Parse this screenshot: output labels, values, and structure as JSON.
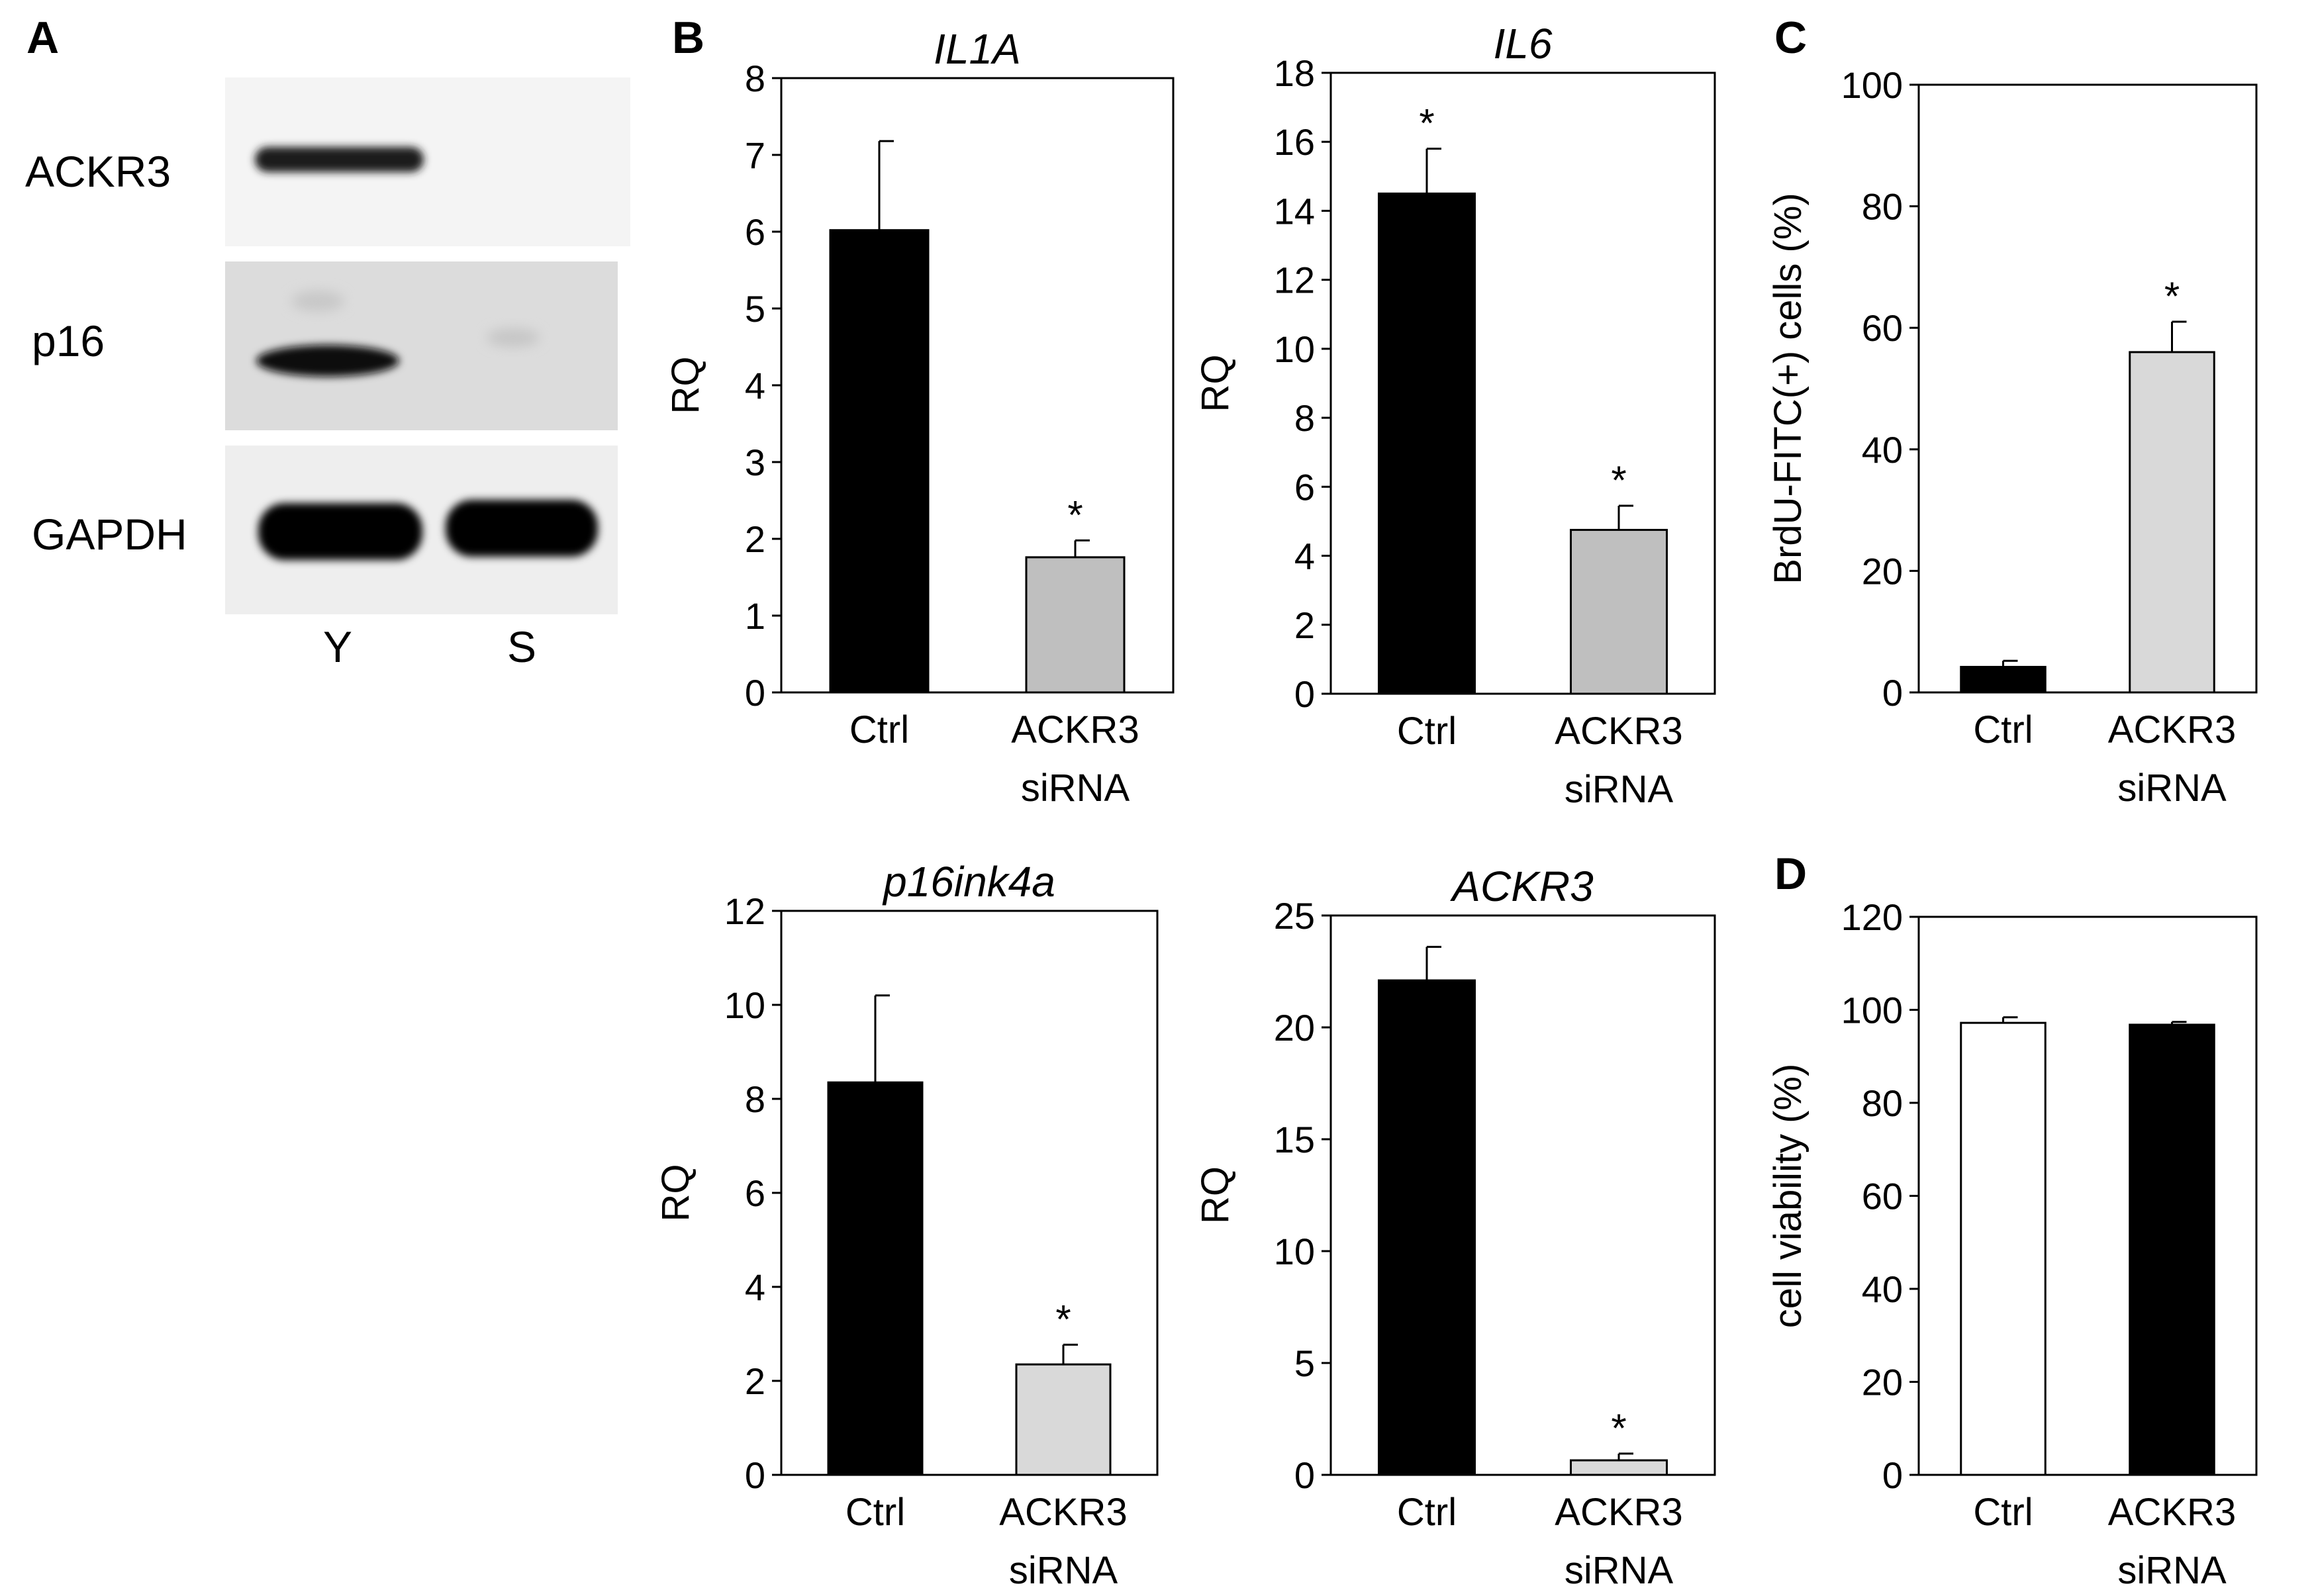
{
  "panels": {
    "A": "A",
    "B": "B",
    "C": "C",
    "D": "D"
  },
  "blot": {
    "rows": [
      "ACKR3",
      "p16",
      "GAPDH"
    ],
    "lanes": [
      "Y",
      "S"
    ],
    "band_intensity": [
      [
        0.85,
        0.02
      ],
      [
        0.9,
        0.05
      ],
      [
        1.0,
        1.0
      ]
    ]
  },
  "colors": {
    "black_bar": "#000000",
    "grey_bar_b": "#bfbfbf",
    "grey_bar_light": "#d9d9d9",
    "white_bar": "#ffffff"
  },
  "chart_data": [
    {
      "id": "il1a",
      "type": "bar",
      "title": "IL1A",
      "ylabel": "RQ",
      "ylim": [
        0,
        8
      ],
      "yticks": [
        0,
        1,
        2,
        3,
        4,
        5,
        6,
        7,
        8
      ],
      "categories": [
        [
          "Ctrl"
        ],
        [
          "ACKR3",
          "siRNA"
        ]
      ],
      "values": [
        6.02,
        1.76
      ],
      "errors": [
        1.16,
        0.22
      ],
      "significance": [
        "",
        "*"
      ],
      "bar_colors": [
        "#000000",
        "#bfbfbf"
      ]
    },
    {
      "id": "il6",
      "type": "bar",
      "title": "IL6",
      "ylabel": "RQ",
      "ylim": [
        0,
        18
      ],
      "yticks": [
        0,
        2,
        4,
        6,
        8,
        10,
        12,
        14,
        16,
        18
      ],
      "categories": [
        [
          "Ctrl"
        ],
        [
          "ACKR3",
          "siRNA"
        ]
      ],
      "values": [
        14.5,
        4.75
      ],
      "errors": [
        1.3,
        0.7
      ],
      "significance": [
        "*",
        "*"
      ],
      "bar_colors": [
        "#000000",
        "#bfbfbf"
      ]
    },
    {
      "id": "brdu",
      "type": "bar",
      "title": "",
      "ylabel": "BrdU-FITC(+) cells (%)",
      "ylim": [
        0,
        100
      ],
      "yticks": [
        0,
        20,
        40,
        60,
        80,
        100
      ],
      "categories": [
        [
          "Ctrl"
        ],
        [
          "ACKR3",
          "siRNA"
        ]
      ],
      "values": [
        4.2,
        56
      ],
      "errors": [
        1.0,
        5.0
      ],
      "significance": [
        "",
        "*"
      ],
      "bar_colors": [
        "#000000",
        "#d9d9d9"
      ]
    },
    {
      "id": "p16ink4a",
      "type": "bar",
      "title": "p16ink4a",
      "ylabel": "RQ",
      "ylim": [
        0,
        12
      ],
      "yticks": [
        0,
        2,
        4,
        6,
        8,
        10,
        12
      ],
      "categories": [
        [
          "Ctrl"
        ],
        [
          "ACKR3",
          "siRNA"
        ]
      ],
      "values": [
        8.35,
        2.35
      ],
      "errors": [
        1.85,
        0.42
      ],
      "significance": [
        "",
        "*"
      ],
      "bar_colors": [
        "#000000",
        "#d9d9d9"
      ]
    },
    {
      "id": "ackr3",
      "type": "bar",
      "title": "ACKR3",
      "ylabel": "RQ",
      "ylim": [
        0,
        25
      ],
      "yticks": [
        0,
        5,
        10,
        15,
        20,
        25
      ],
      "categories": [
        [
          "Ctrl"
        ],
        [
          "ACKR3",
          "siRNA"
        ]
      ],
      "values": [
        22.1,
        0.65
      ],
      "errors": [
        1.5,
        0.3
      ],
      "significance": [
        "",
        "*"
      ],
      "bar_colors": [
        "#000000",
        "#d9d9d9"
      ]
    },
    {
      "id": "viability",
      "type": "bar",
      "title": "",
      "ylabel": "cell viability (%)",
      "ylim": [
        0,
        120
      ],
      "yticks": [
        0,
        20,
        40,
        60,
        80,
        100,
        120
      ],
      "categories": [
        [
          "Ctrl"
        ],
        [
          "ACKR3",
          "siRNA"
        ]
      ],
      "values": [
        97.2,
        96.8
      ],
      "errors": [
        1.2,
        0.6
      ],
      "significance": [
        "",
        ""
      ],
      "bar_colors": [
        "#ffffff",
        "#000000"
      ]
    }
  ]
}
